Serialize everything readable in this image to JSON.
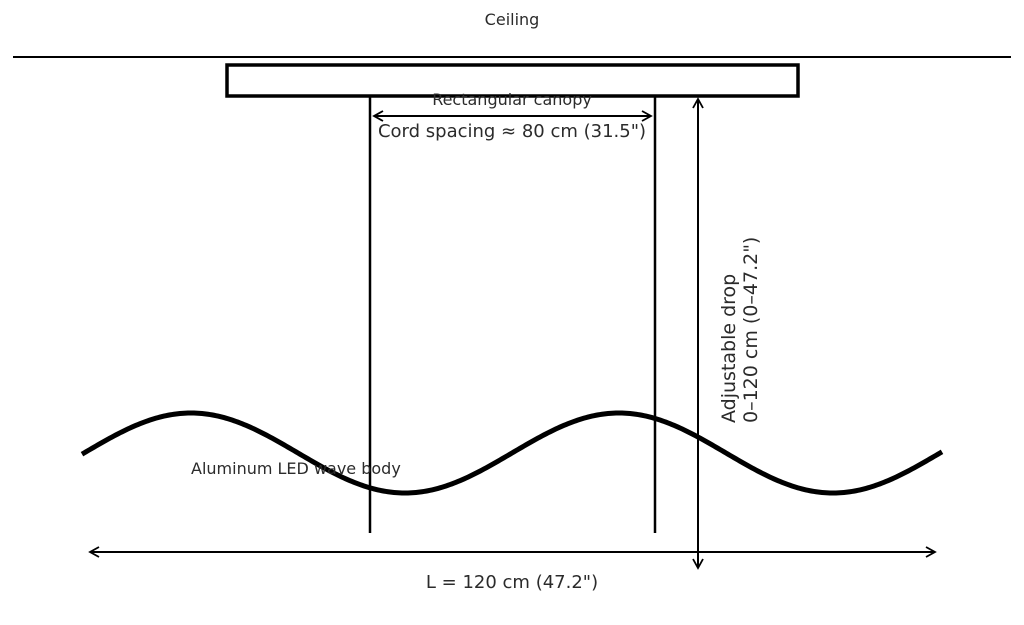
{
  "labels": {
    "ceiling": "Ceiling",
    "canopy": "Rectangular canopy",
    "cord_spacing": "Cord spacing ≈ 80 cm (31.5\")",
    "drop_line1": "Adjustable drop",
    "drop_line2": "0–120 cm (0–47.2\")",
    "body": "Aluminum LED wave body",
    "length": "L = 120 cm (47.2\")"
  },
  "colors": {
    "stroke": "#000000",
    "text": "#2b2b2b"
  }
}
